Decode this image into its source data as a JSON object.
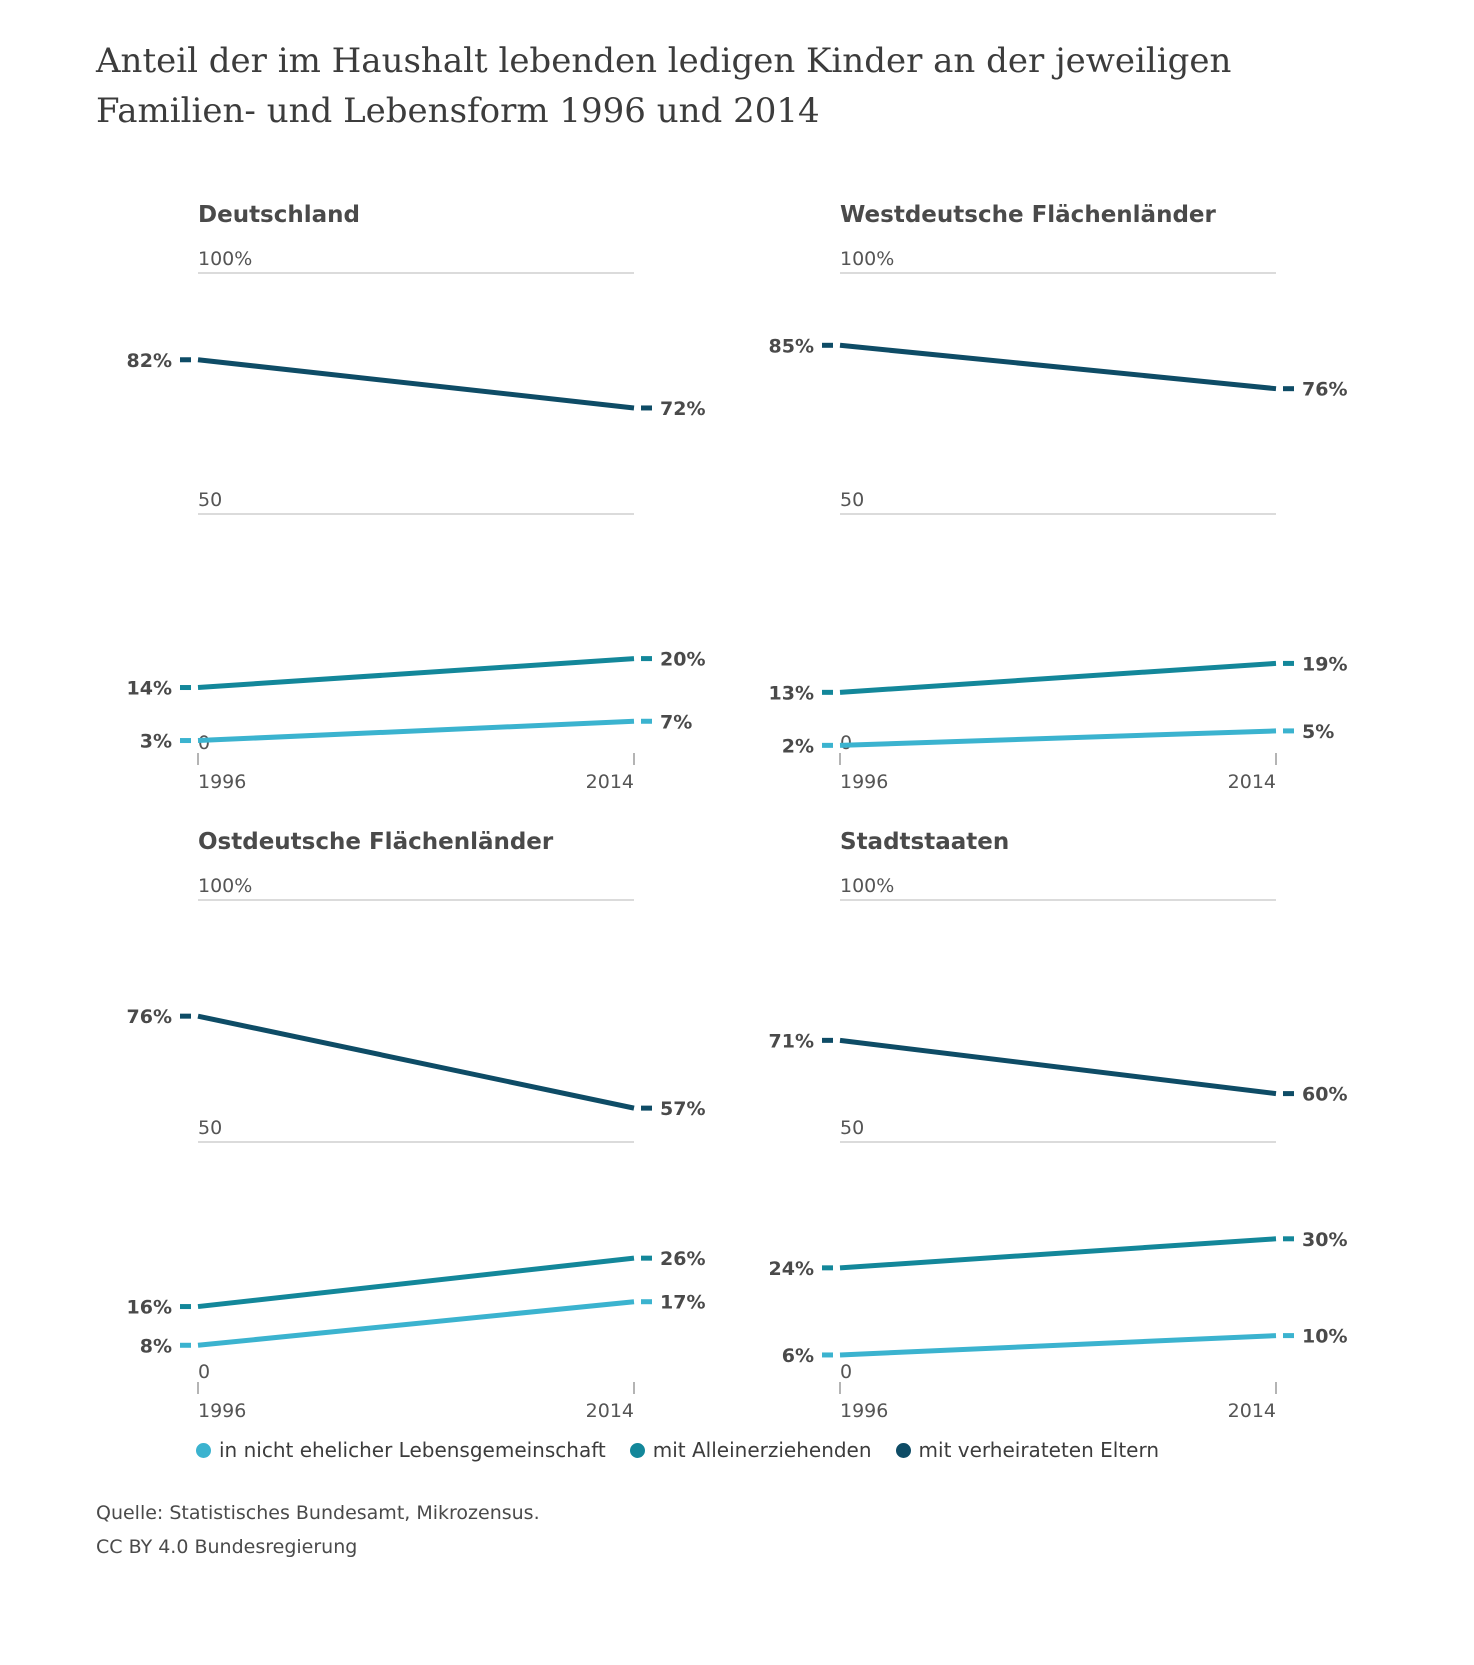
{
  "title": "Anteil der im Haushalt lebenden ledigen Kinder an der jeweiligen Familien- und Lebensform 1996 und 2014",
  "legend": [
    {
      "label": "in nicht ehelicher Lebensgemeinschaft",
      "color": "#3bb3cf"
    },
    {
      "label": "mit Alleinerziehenden",
      "color": "#13879a"
    },
    {
      "label": "mit verheirateten Eltern",
      "color": "#0e4c66"
    }
  ],
  "footer": {
    "source": "Quelle: Statistisches Bundesamt, Mikrozensus.",
    "license": "CC BY 4.0 Bundesregierung"
  },
  "chart_data": [
    {
      "type": "line",
      "title": "Deutschland",
      "x": [
        "1996",
        "2014"
      ],
      "ylim": [
        0,
        100
      ],
      "yticks": [
        "100%",
        "50",
        "0"
      ],
      "series": [
        {
          "name": "mit verheirateten Eltern",
          "values": [
            82,
            72
          ],
          "labels": [
            "82%",
            "72%"
          ]
        },
        {
          "name": "mit Alleinerziehenden",
          "values": [
            14,
            20
          ],
          "labels": [
            "14%",
            "20%"
          ]
        },
        {
          "name": "in nicht ehelicher Lebensgemeinschaft",
          "values": [
            3,
            7
          ],
          "labels": [
            "3%",
            "7%"
          ]
        }
      ]
    },
    {
      "type": "line",
      "title": "Westdeutsche Flächenländer",
      "x": [
        "1996",
        "2014"
      ],
      "ylim": [
        0,
        100
      ],
      "yticks": [
        "100%",
        "50",
        "0"
      ],
      "series": [
        {
          "name": "mit verheirateten Eltern",
          "values": [
            85,
            76
          ],
          "labels": [
            "85%",
            "76%"
          ]
        },
        {
          "name": "mit Alleinerziehenden",
          "values": [
            13,
            19
          ],
          "labels": [
            "13%",
            "19%"
          ]
        },
        {
          "name": "in nicht ehelicher Lebensgemeinschaft",
          "values": [
            2,
            5
          ],
          "labels": [
            "2%",
            "5%"
          ]
        }
      ]
    },
    {
      "type": "line",
      "title": "Ostdeutsche Flächenländer",
      "x": [
        "1996",
        "2014"
      ],
      "ylim": [
        0,
        100
      ],
      "yticks": [
        "100%",
        "50",
        "0"
      ],
      "series": [
        {
          "name": "mit verheirateten Eltern",
          "values": [
            76,
            57
          ],
          "labels": [
            "76%",
            "57%"
          ]
        },
        {
          "name": "mit Alleinerziehenden",
          "values": [
            16,
            26
          ],
          "labels": [
            "16%",
            "26%"
          ]
        },
        {
          "name": "in nicht ehelicher Lebensgemeinschaft",
          "values": [
            8,
            17
          ],
          "labels": [
            "8%",
            "17%"
          ]
        }
      ]
    },
    {
      "type": "line",
      "title": "Stadtstaaten",
      "x": [
        "1996",
        "2014"
      ],
      "ylim": [
        0,
        100
      ],
      "yticks": [
        "100%",
        "50",
        "0"
      ],
      "series": [
        {
          "name": "mit verheirateten Eltern",
          "values": [
            71,
            60
          ],
          "labels": [
            "71%",
            "60%"
          ]
        },
        {
          "name": "mit Alleinerziehenden",
          "values": [
            24,
            30
          ],
          "labels": [
            "24%",
            "30%"
          ]
        },
        {
          "name": "in nicht ehelicher Lebensgemeinschaft",
          "values": [
            6,
            10
          ],
          "labels": [
            "6%",
            "10%"
          ]
        }
      ]
    }
  ]
}
